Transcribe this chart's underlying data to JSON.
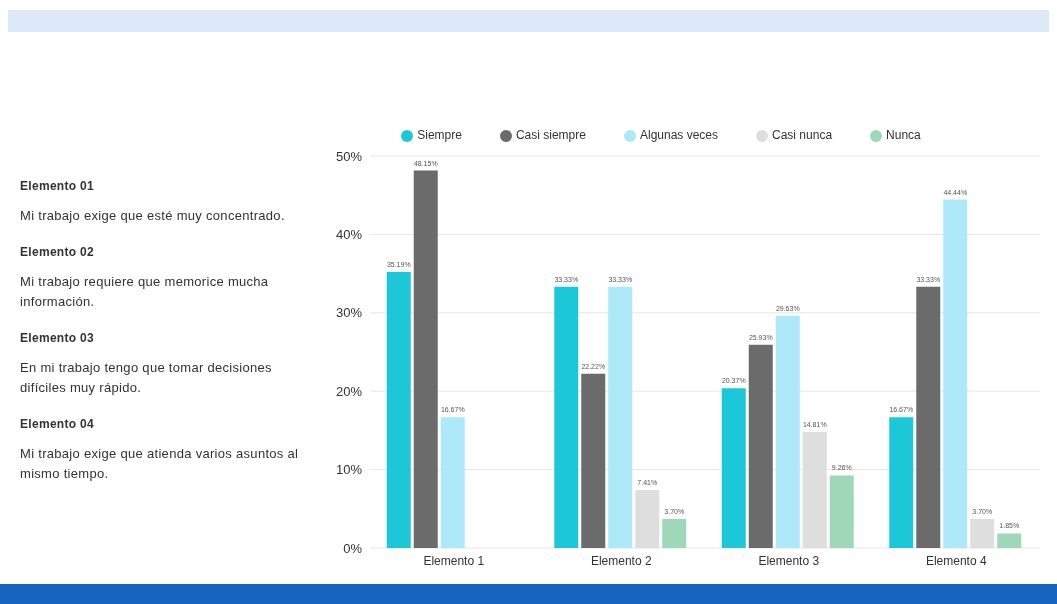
{
  "chart_data": {
    "type": "bar",
    "categories": [
      "Elemento 1",
      "Elemento 2",
      "Elemento 3",
      "Elemento 4"
    ],
    "series": [
      {
        "name": "Siempre",
        "color": "#1cc8d8",
        "values": [
          35.19,
          33.33,
          20.37,
          16.67
        ],
        "value_labels": [
          "35.19%",
          "33.33%",
          "20.37%",
          "16.67%"
        ]
      },
      {
        "name": "Casi siempre",
        "color": "#6b6b6b",
        "values": [
          48.15,
          22.22,
          25.93,
          33.33
        ],
        "value_labels": [
          "48.15%",
          "22.22%",
          "25.93%",
          "33.33%"
        ]
      },
      {
        "name": "Algunas veces",
        "color": "#aee9f9",
        "values": [
          16.67,
          33.33,
          29.63,
          44.44
        ],
        "value_labels": [
          "16.67%",
          "33.33%",
          "29.63%",
          "44.44%"
        ]
      },
      {
        "name": "Casi nunca",
        "color": "#dedede",
        "values": [
          null,
          7.41,
          14.81,
          3.7
        ],
        "value_labels": [
          null,
          "7.41%",
          "14.81%",
          "3.70%"
        ]
      },
      {
        "name": "Nunca",
        "color": "#9fd8b8",
        "values": [
          null,
          3.7,
          9.26,
          1.85
        ],
        "value_labels": [
          null,
          "3.70%",
          "9.26%",
          "1.85%"
        ]
      }
    ],
    "ylim": [
      0,
      50
    ],
    "yticks": [
      {
        "value": 0,
        "label": "0%"
      },
      {
        "value": 10,
        "label": "10%"
      },
      {
        "value": 20,
        "label": "20%"
      },
      {
        "value": 30,
        "label": "30%"
      },
      {
        "value": 40,
        "label": "40%"
      },
      {
        "value": 50,
        "label": "50%"
      }
    ],
    "grid": "y",
    "legend": "top",
    "annotations": [
      "Elemento 01",
      "Mi trabajo exige que esté muy concentrado.",
      "Elemento 02",
      "Mi trabajo requiere que memorice mucha información.",
      "Elemento 03",
      "En mi trabajo tengo que tomar decisiones difíciles muy rápido.",
      "Elemento 04",
      "Mi trabajo exige que atienda varios asuntos al mismo tiempo."
    ]
  }
}
